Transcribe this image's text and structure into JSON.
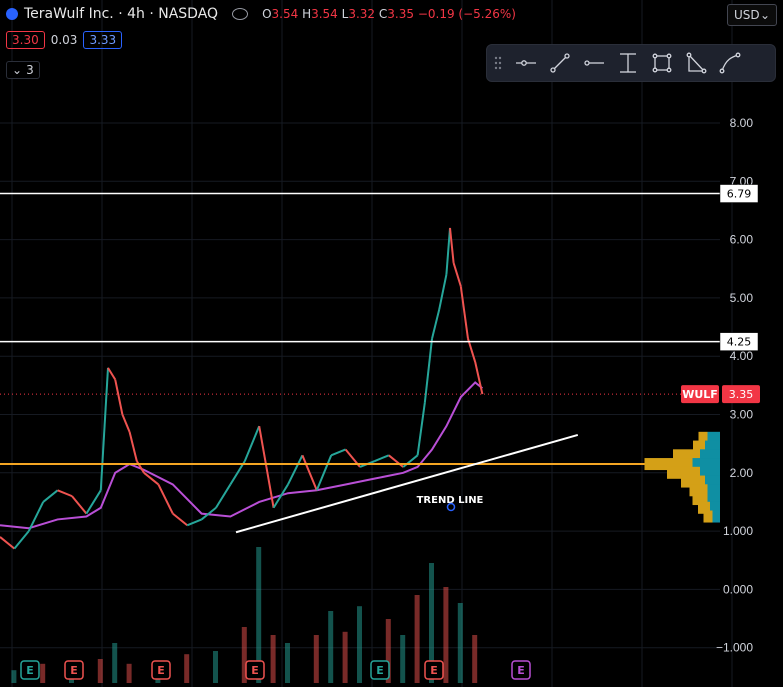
{
  "header": {
    "title": "TeraWulf Inc. · 4h · NASDAQ",
    "ohlc": [
      {
        "k": "O",
        "v": "3.54"
      },
      {
        "k": "H",
        "v": "3.54"
      },
      {
        "k": "L",
        "v": "3.32"
      },
      {
        "k": "C",
        "v": "3.35"
      }
    ],
    "change": "−0.19 (−5.26%)",
    "sell_price": "3.30",
    "spread": "0.03",
    "buy_price": "3.33",
    "indicators_toggle": "3",
    "currency": "USD"
  },
  "toolbar": {
    "tools": [
      "horizontal-ray-tool-icon",
      "trend-line-tool-icon",
      "horizontal-line-tool-icon",
      "price-range-tool-icon",
      "rectangle-tool-icon",
      "triangle-tool-icon",
      "curve-tool-icon"
    ]
  },
  "colors": {
    "up": "#26a69a",
    "down": "#ef5350",
    "ma": "#b94fd6",
    "orange": "#f5a623",
    "white": "#ffffff",
    "price_badge": "#f23645",
    "volume_profile_gold": "#d4a017",
    "volume_profile_teal": "#0f8fa3"
  },
  "chart_data": {
    "type": "line",
    "symbol": "WULF",
    "timeframe": "4h",
    "y_axis_ticks": [
      "8.00",
      "7.00",
      "6.00",
      "5.00",
      "4.00",
      "3.00",
      "2.00",
      "1.000",
      "0.000",
      "−1.000"
    ],
    "ylim": [
      -1.0,
      8.0
    ],
    "last_price": 3.35,
    "last_price_label": "3.35",
    "horizontal_lines": [
      {
        "price": 6.79,
        "label": "6.79",
        "color": "#ffffff"
      },
      {
        "price": 4.25,
        "label": "4.25",
        "color": "#ffffff"
      },
      {
        "price": 2.15,
        "label": "",
        "color": "#f5a623"
      }
    ],
    "trend_line": {
      "label": "TREND LINE",
      "points": [
        [
          0.3,
          0.98
        ],
        [
          0.74,
          2.65
        ]
      ]
    },
    "price_series": {
      "name": "WULF",
      "x": [
        0.0,
        0.02,
        0.04,
        0.06,
        0.08,
        0.1,
        0.12,
        0.14,
        0.15,
        0.16,
        0.17,
        0.18,
        0.19,
        0.2,
        0.22,
        0.24,
        0.26,
        0.28,
        0.3,
        0.32,
        0.34,
        0.36,
        0.37,
        0.38,
        0.4,
        0.42,
        0.44,
        0.46,
        0.48,
        0.5,
        0.52,
        0.54,
        0.56,
        0.58,
        0.59,
        0.6,
        0.61,
        0.62,
        0.625,
        0.63,
        0.64,
        0.65,
        0.66,
        0.67
      ],
      "y": [
        0.9,
        0.7,
        1.0,
        1.5,
        1.7,
        1.6,
        1.3,
        1.7,
        3.8,
        3.6,
        3.0,
        2.7,
        2.2,
        2.0,
        1.8,
        1.3,
        1.1,
        1.2,
        1.4,
        1.8,
        2.2,
        2.8,
        2.1,
        1.4,
        1.8,
        2.3,
        1.7,
        2.3,
        2.4,
        2.1,
        2.2,
        2.3,
        2.1,
        2.3,
        3.2,
        4.3,
        4.8,
        5.4,
        6.2,
        5.6,
        5.2,
        4.3,
        3.9,
        3.35
      ]
    },
    "moving_average": {
      "x": [
        0.0,
        0.04,
        0.08,
        0.12,
        0.14,
        0.16,
        0.18,
        0.2,
        0.24,
        0.28,
        0.32,
        0.36,
        0.4,
        0.44,
        0.48,
        0.52,
        0.56,
        0.58,
        0.6,
        0.62,
        0.64,
        0.66,
        0.67
      ],
      "y": [
        1.1,
        1.05,
        1.2,
        1.25,
        1.4,
        2.0,
        2.15,
        2.05,
        1.8,
        1.3,
        1.25,
        1.5,
        1.65,
        1.7,
        1.8,
        1.9,
        2.0,
        2.1,
        2.4,
        2.8,
        3.3,
        3.55,
        3.45
      ]
    },
    "volume": {
      "x": [
        0.02,
        0.06,
        0.1,
        0.14,
        0.16,
        0.18,
        0.22,
        0.26,
        0.3,
        0.34,
        0.36,
        0.38,
        0.4,
        0.44,
        0.46,
        0.48,
        0.5,
        0.54,
        0.56,
        0.58,
        0.6,
        0.62,
        0.64,
        0.66
      ],
      "v": [
        0.08,
        0.12,
        0.1,
        0.15,
        0.25,
        0.12,
        0.1,
        0.18,
        0.2,
        0.35,
        0.85,
        0.3,
        0.25,
        0.3,
        0.45,
        0.32,
        0.48,
        0.4,
        0.3,
        0.55,
        0.75,
        0.6,
        0.5,
        0.3
      ]
    },
    "earnings_markers": [
      "E",
      "E",
      "E",
      "E",
      "E",
      "E",
      "E"
    ],
    "volume_profile": [
      {
        "price": 2.6,
        "gold": 0.15,
        "teal": 0.25
      },
      {
        "price": 2.45,
        "gold": 0.2,
        "teal": 0.3
      },
      {
        "price": 2.3,
        "gold": 0.45,
        "teal": 0.4
      },
      {
        "price": 2.15,
        "gold": 0.8,
        "teal": 0.55
      },
      {
        "price": 2.0,
        "gold": 0.55,
        "teal": 0.4
      },
      {
        "price": 1.85,
        "gold": 0.4,
        "teal": 0.3
      },
      {
        "price": 1.7,
        "gold": 0.3,
        "teal": 0.25
      },
      {
        "price": 1.55,
        "gold": 0.25,
        "teal": 0.25
      },
      {
        "price": 1.4,
        "gold": 0.2,
        "teal": 0.2
      },
      {
        "price": 1.25,
        "gold": 0.15,
        "teal": 0.15
      }
    ]
  }
}
